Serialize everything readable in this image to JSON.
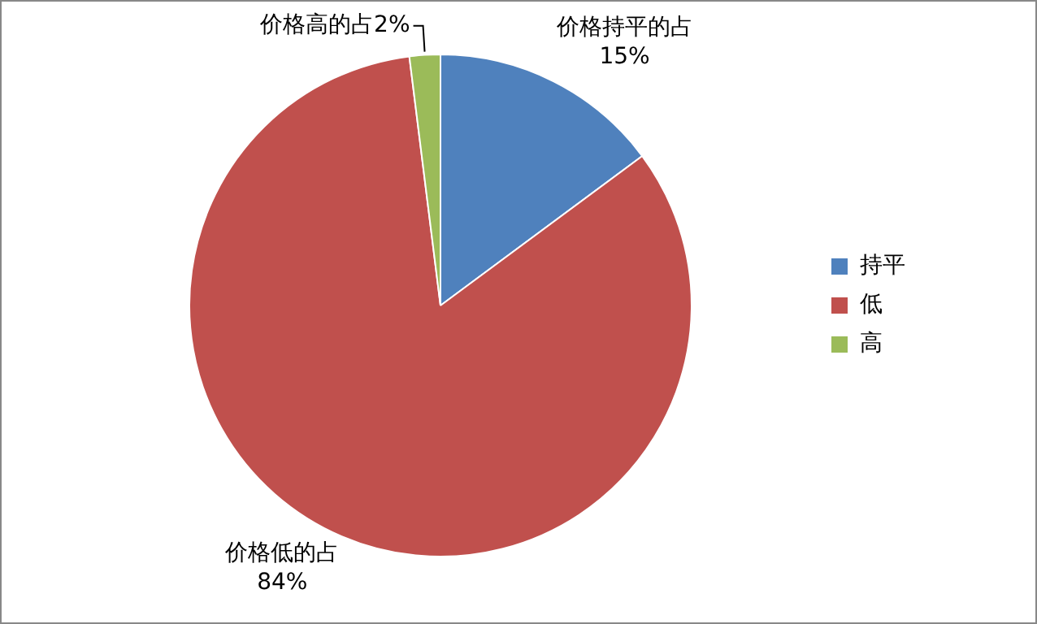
{
  "chart_data": {
    "type": "pie",
    "categories": [
      "持平",
      "低",
      "高"
    ],
    "values": [
      15,
      84,
      2
    ],
    "colors": [
      "#4f81bd",
      "#c0504d",
      "#9bbb59"
    ],
    "value_labels": [
      "价格持平的占\n15%",
      "价格低的占\n84%",
      "价格高的占2%"
    ],
    "legend": "right"
  }
}
